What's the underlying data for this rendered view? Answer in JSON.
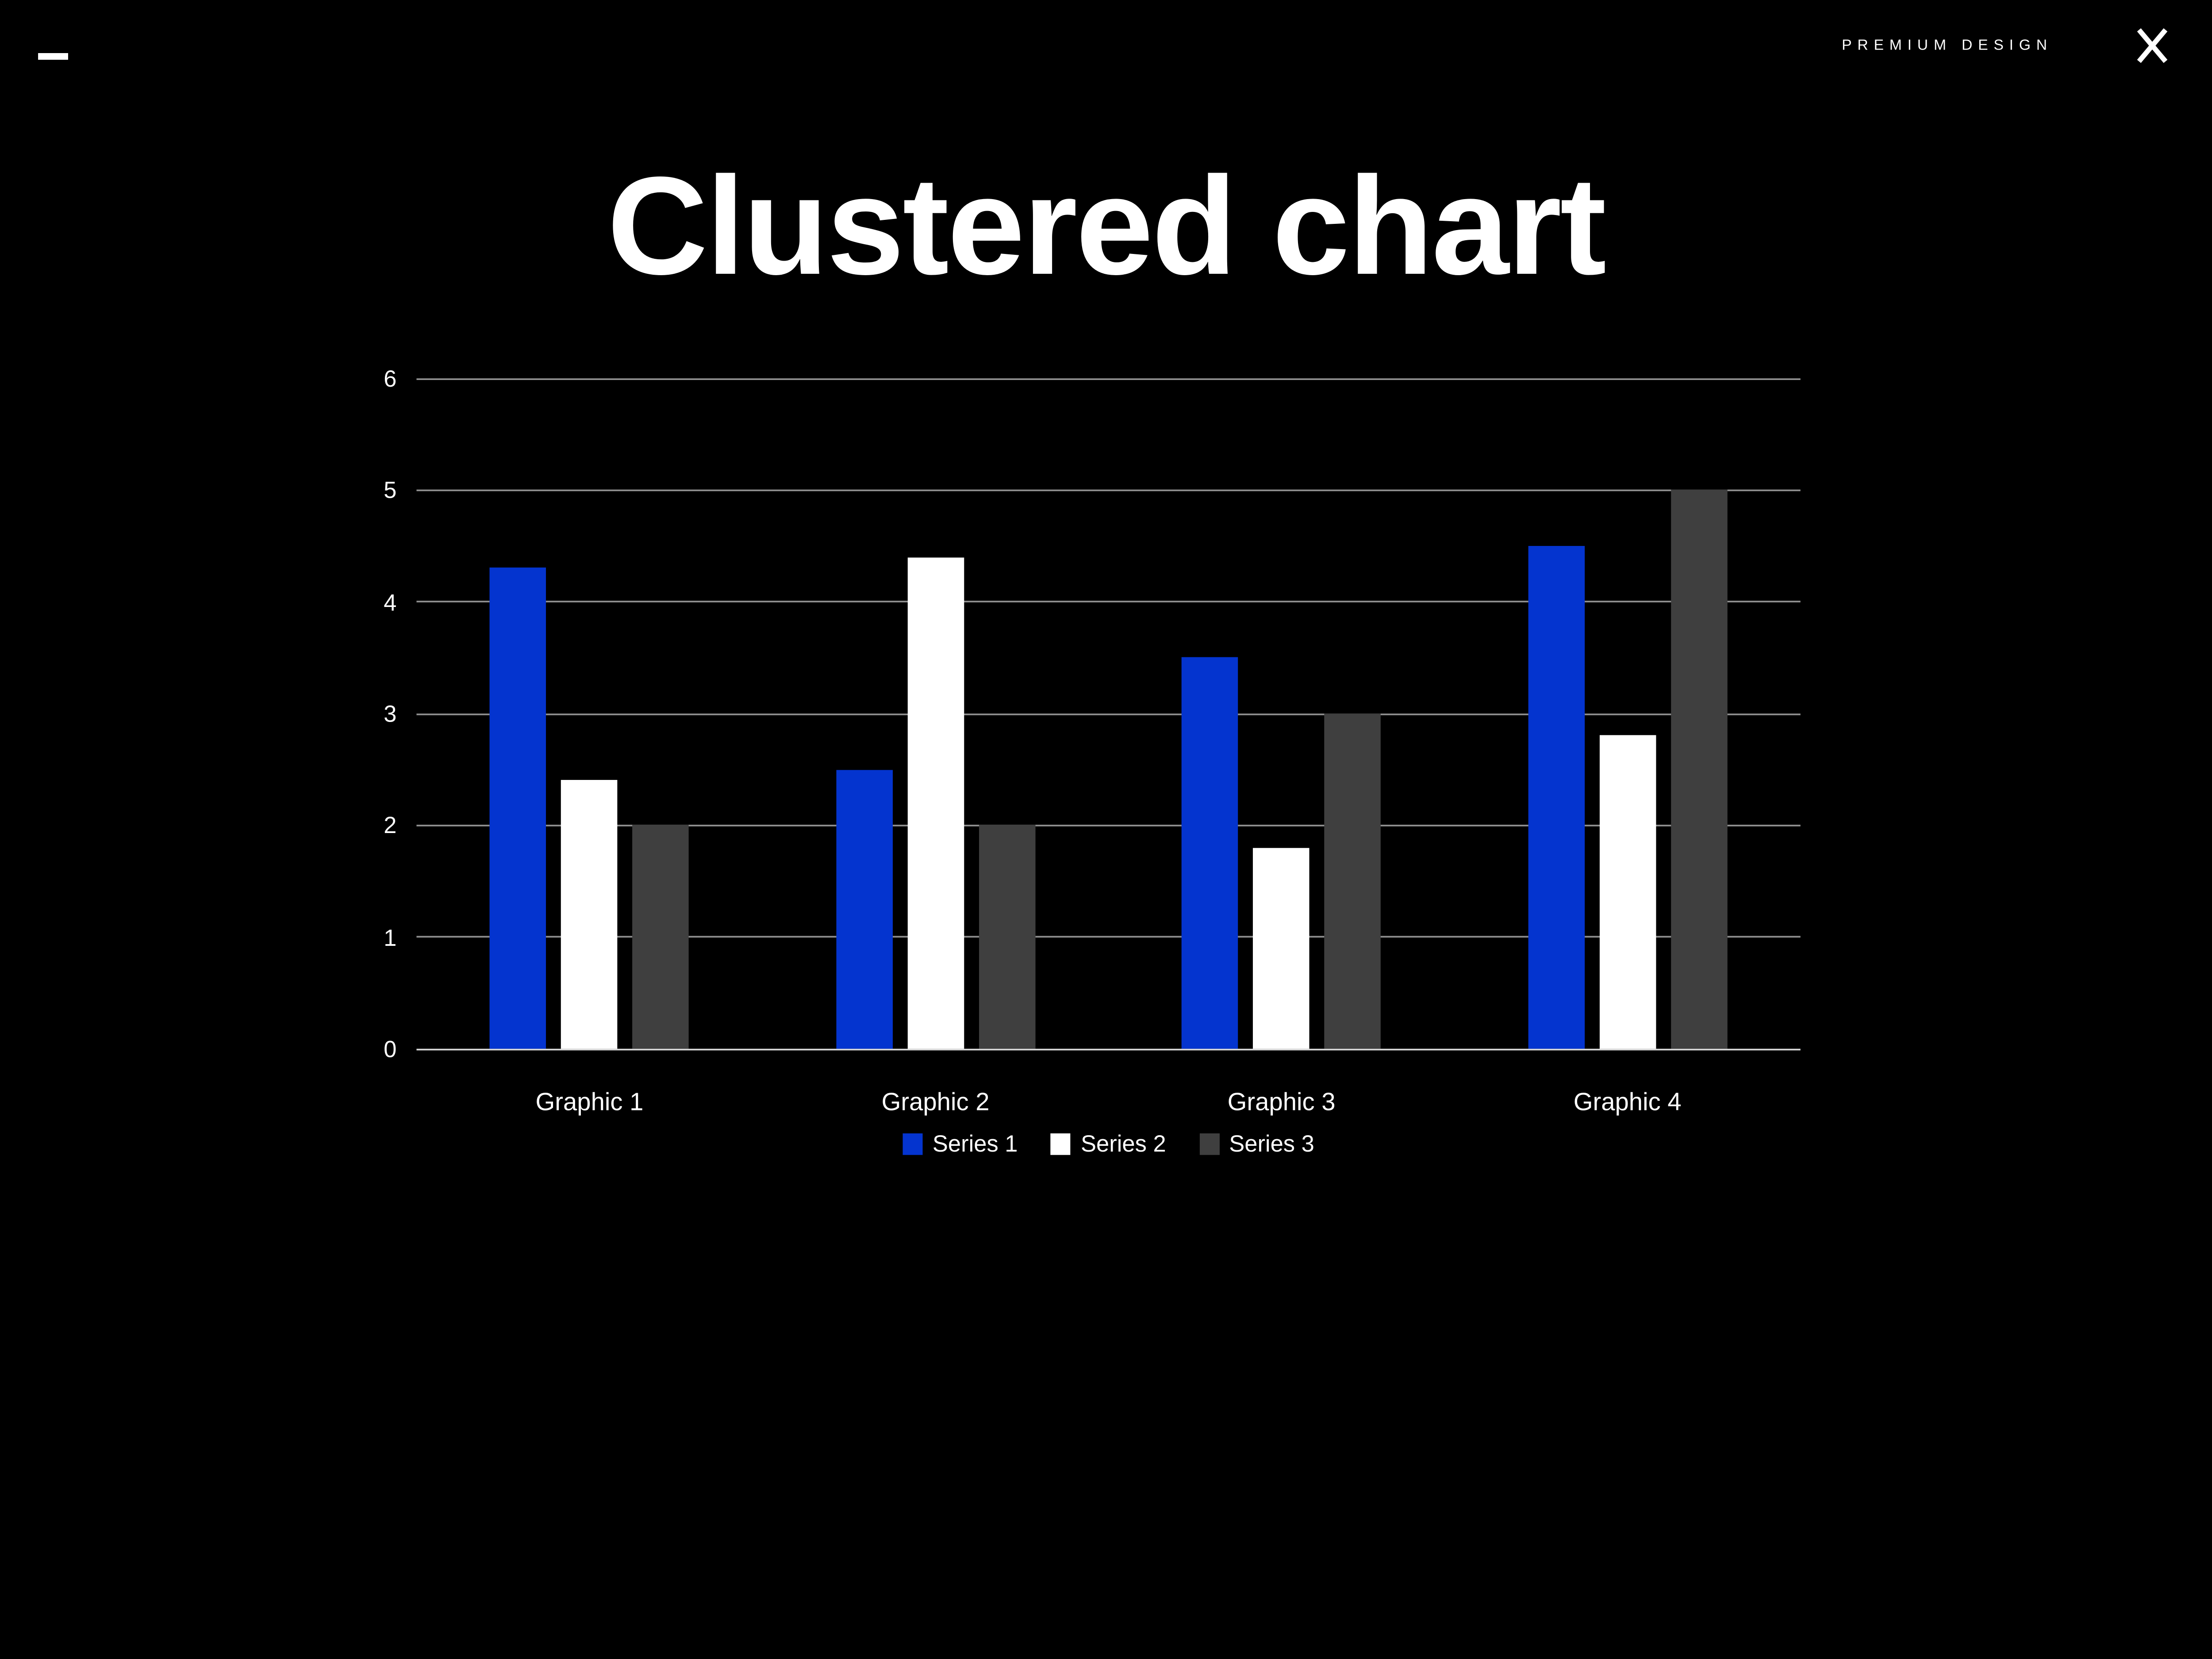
{
  "page": {
    "background": "#000000"
  },
  "header": {
    "menu_icon": "hamburger-menu",
    "brand": "PREMIUM DESIGN",
    "close_icon": "close"
  },
  "title": "Clustered chart",
  "chart_data": {
    "type": "bar",
    "title": "Clustered chart",
    "categories": [
      "Graphic 1",
      "Graphic 2",
      "Graphic 3",
      "Graphic 4"
    ],
    "series": [
      {
        "name": "Series 1",
        "color": "#0434cf",
        "values": [
          4.3,
          2.5,
          3.5,
          4.5
        ]
      },
      {
        "name": "Series 2",
        "color": "#ffffff",
        "values": [
          2.4,
          4.4,
          1.8,
          2.8
        ]
      },
      {
        "name": "Series 3",
        "color": "#3f3f3f",
        "values": [
          2.0,
          2.0,
          3.0,
          5.0
        ]
      }
    ],
    "y_axis": {
      "min": 0,
      "max": 6,
      "tick_step": 1,
      "ticks": [
        0,
        1,
        2,
        3,
        4,
        5,
        6
      ]
    },
    "grid": "horizontal-on",
    "legend_position": "bottom-center",
    "colors": {
      "gridline": "#909090",
      "axis_line": "#d9d9d9",
      "text": "#ffffff",
      "background": "#000000"
    }
  }
}
